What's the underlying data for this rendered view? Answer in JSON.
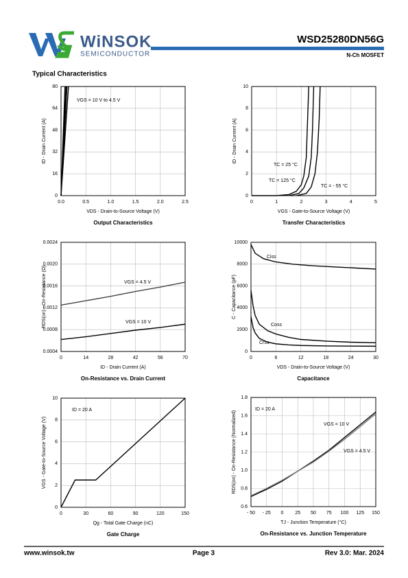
{
  "header": {
    "brand": "WiNSOK",
    "brand_sub": "SEMICONDUCTOR",
    "part_number": "WSD25280DN56G",
    "device_type": "N-Ch MOSFET"
  },
  "section_title": "Typical Characteristics",
  "footer": {
    "website": "www.winsok.tw",
    "page": "Page 3",
    "revision": "Rev 3.0: Mar. 2024"
  },
  "chart_data": [
    {
      "type": "line",
      "title": "Output Characteristics",
      "x_label": "VDS - Drain-to-Source Voltage (V)",
      "y_label": "ID - Drain Current (A)",
      "xlim": [
        0,
        2.5
      ],
      "xticks": [
        {
          "value": 0,
          "label": "0.0"
        },
        0.5,
        {
          "value": 1,
          "label": "1.0"
        },
        1.5,
        {
          "value": 2,
          "label": "2.0"
        },
        2.5
      ],
      "ylim": [
        0,
        80
      ],
      "yticks": [
        0,
        16,
        32,
        48,
        64,
        80
      ],
      "grid": true,
      "annotations": [
        "VGS = 10 V to 4.5 V"
      ],
      "series": [
        {
          "color": "#000000",
          "x": [
            0,
            0.08
          ],
          "values": [
            0,
            80
          ]
        },
        {
          "color": "#000000",
          "x": [
            0,
            0.1
          ],
          "values": [
            0,
            80
          ]
        },
        {
          "color": "#000000",
          "x": [
            0,
            0.12
          ],
          "values": [
            0,
            80
          ]
        },
        {
          "color": "#000000",
          "x": [
            0,
            0.15
          ],
          "values": [
            0,
            80
          ]
        }
      ]
    },
    {
      "type": "line",
      "title": "Transfer Characteristics",
      "x_label": "VGS - Gate-to-Source Voltage (V)",
      "y_label": "ID - Drain Current (A)",
      "xlim": [
        0,
        5
      ],
      "xticks": [
        0,
        1,
        2,
        3,
        4,
        5
      ],
      "ylim": [
        0,
        10
      ],
      "yticks": [
        0,
        2,
        4,
        6,
        8,
        10
      ],
      "grid": true,
      "annotations": [],
      "series": [
        {
          "name": "TC = 125 °C",
          "color": "#000000",
          "x": [
            0,
            1.0,
            1.5,
            1.8,
            2.0,
            2.1,
            2.2,
            2.3
          ],
          "values": [
            0,
            0,
            0.1,
            0.4,
            1.0,
            1.8,
            3.5,
            10
          ]
        },
        {
          "name": "TC = 25 °C",
          "color": "#000000",
          "x": [
            1.5,
            1.9,
            2.1,
            2.3,
            2.4,
            2.45,
            2.5
          ],
          "values": [
            0,
            0.2,
            0.7,
            1.8,
            3.5,
            6,
            10
          ]
        },
        {
          "name": "TC = - 55 °C",
          "color": "#000000",
          "x": [
            1.8,
            2.2,
            2.4,
            2.55,
            2.65,
            2.72,
            2.76
          ],
          "values": [
            0,
            0.2,
            0.8,
            2,
            4,
            7,
            10
          ]
        }
      ]
    },
    {
      "type": "line",
      "title": "On-Resistance vs. Drain Current",
      "x_label": "ID - Drain Current (A)",
      "y_label": "RDS(on) - On-Resistance (Ω)",
      "xlim": [
        0,
        70
      ],
      "xticks": [
        0,
        14,
        28,
        42,
        56,
        70
      ],
      "ylim": [
        0.0004,
        0.0024
      ],
      "yticks": [
        0.0004,
        0.0008,
        0.0012,
        0.0016,
        {
          "value": 0.002,
          "label": "0.0020"
        },
        0.0024
      ],
      "grid": true,
      "annotations": [],
      "series": [
        {
          "name": "VGS = 4.5 V",
          "color": "#444444",
          "x": [
            0,
            14,
            28,
            42,
            56,
            70
          ],
          "values": [
            0.00125,
            0.00133,
            0.00141,
            0.0015,
            0.00158,
            0.00167
          ]
        },
        {
          "name": "VGS = 10 V",
          "color": "#000000",
          "x": [
            0,
            14,
            28,
            42,
            56,
            70
          ],
          "values": [
            0.00062,
            0.00067,
            0.00073,
            0.00079,
            0.00084,
            0.0009
          ]
        }
      ]
    },
    {
      "type": "line",
      "title": "Capacitance",
      "x_label": "VDS - Drain-to-Source Voltage (V)",
      "y_label": "C - Capacitance (pF)",
      "xlim": [
        0,
        30
      ],
      "xticks": [
        0,
        6,
        12,
        18,
        24,
        30
      ],
      "ylim": [
        0,
        10000
      ],
      "yticks": [
        0,
        2000,
        4000,
        6000,
        8000,
        10000
      ],
      "grid": true,
      "annotations": [],
      "series": [
        {
          "name": "Ciss",
          "color": "#000000",
          "x": [
            0,
            1,
            3,
            6,
            10,
            15,
            20,
            25,
            30
          ],
          "values": [
            9800,
            9000,
            8500,
            8200,
            8000,
            7850,
            7750,
            7650,
            7550
          ]
        },
        {
          "name": "Coss",
          "color": "#000000",
          "x": [
            0,
            0.5,
            1,
            2,
            4,
            6,
            9,
            12,
            18,
            24,
            30
          ],
          "values": [
            5600,
            4200,
            3300,
            2500,
            1900,
            1600,
            1300,
            1100,
            950,
            850,
            800
          ]
        },
        {
          "name": "Crss",
          "color": "#000000",
          "x": [
            0,
            0.5,
            1,
            2,
            4,
            6,
            9,
            12,
            18,
            24,
            30
          ],
          "values": [
            3200,
            2200,
            1700,
            1200,
            850,
            700,
            600,
            550,
            510,
            490,
            480
          ]
        }
      ]
    },
    {
      "type": "line",
      "title": "Gate Charge",
      "x_label": "Qg - Total Gate Charge (nC)",
      "y_label": "VGS - Gate-to-Source Voltage (V)",
      "xlim": [
        0,
        150
      ],
      "xticks": [
        0,
        30,
        60,
        90,
        120,
        150
      ],
      "ylim": [
        0,
        10
      ],
      "yticks": [
        0,
        2,
        4,
        6,
        8,
        10
      ],
      "grid": true,
      "annotations": [
        "ID = 20 A"
      ],
      "series": [
        {
          "color": "#000000",
          "x": [
            0,
            17,
            42,
            150
          ],
          "values": [
            0,
            2.5,
            2.5,
            10
          ]
        }
      ]
    },
    {
      "type": "line",
      "title": "On-Resistance vs. Junction Temperature",
      "x_label": "TJ - Junction Temperature (°C)",
      "y_label": "RDS(on) - On-Resistance (Normalized)",
      "xlim": [
        -50,
        150
      ],
      "xticks": [
        {
          "value": -50,
          "label": "- 50"
        },
        {
          "value": -25,
          "label": "- 25"
        },
        0,
        25,
        50,
        75,
        100,
        125,
        150
      ],
      "ylim": [
        0.6,
        1.8
      ],
      "yticks": [
        0.6,
        0.8,
        {
          "value": 1,
          "label": "1.0"
        },
        1.2,
        1.4,
        1.6,
        1.8
      ],
      "grid": true,
      "annotations": [
        "ID = 20 A"
      ],
      "series": [
        {
          "name": "VGS = 10 V",
          "color": "#000000",
          "x": [
            -50,
            -25,
            0,
            25,
            50,
            75,
            100,
            125,
            150
          ],
          "values": [
            0.71,
            0.79,
            0.88,
            0.99,
            1.1,
            1.22,
            1.36,
            1.5,
            1.64
          ]
        },
        {
          "name": "VGS = 4.5 V",
          "color": "#777777",
          "x": [
            -50,
            -25,
            0,
            25,
            50,
            75,
            100,
            125,
            150
          ],
          "values": [
            0.72,
            0.8,
            0.89,
            0.99,
            1.09,
            1.21,
            1.34,
            1.48,
            1.62
          ]
        }
      ]
    }
  ]
}
